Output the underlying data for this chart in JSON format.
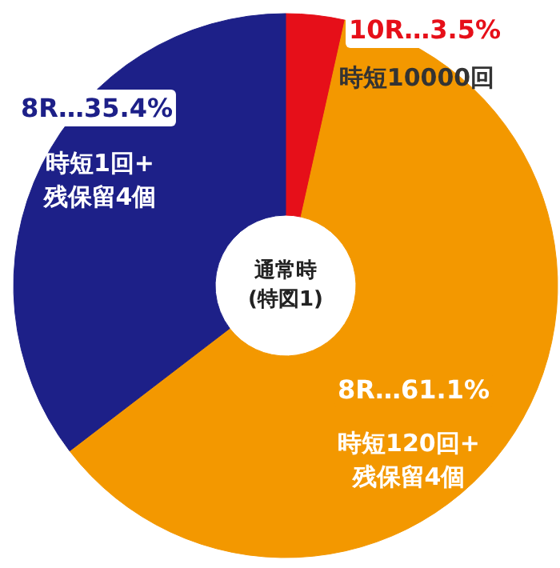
{
  "chart_data": {
    "type": "donut",
    "title": "通常時\n(特図1)",
    "categories": [
      "10R…3.5%",
      "8R…61.1%",
      "8R…35.4%"
    ],
    "values": [
      3.5,
      61.1,
      35.4
    ],
    "colors": [
      "#e60f19",
      "#f39800",
      "#1d2088"
    ],
    "annotations": [
      "時短10000回",
      "時短120回+\n残保留4個",
      "時短1回+\n残保留4個"
    ]
  }
}
